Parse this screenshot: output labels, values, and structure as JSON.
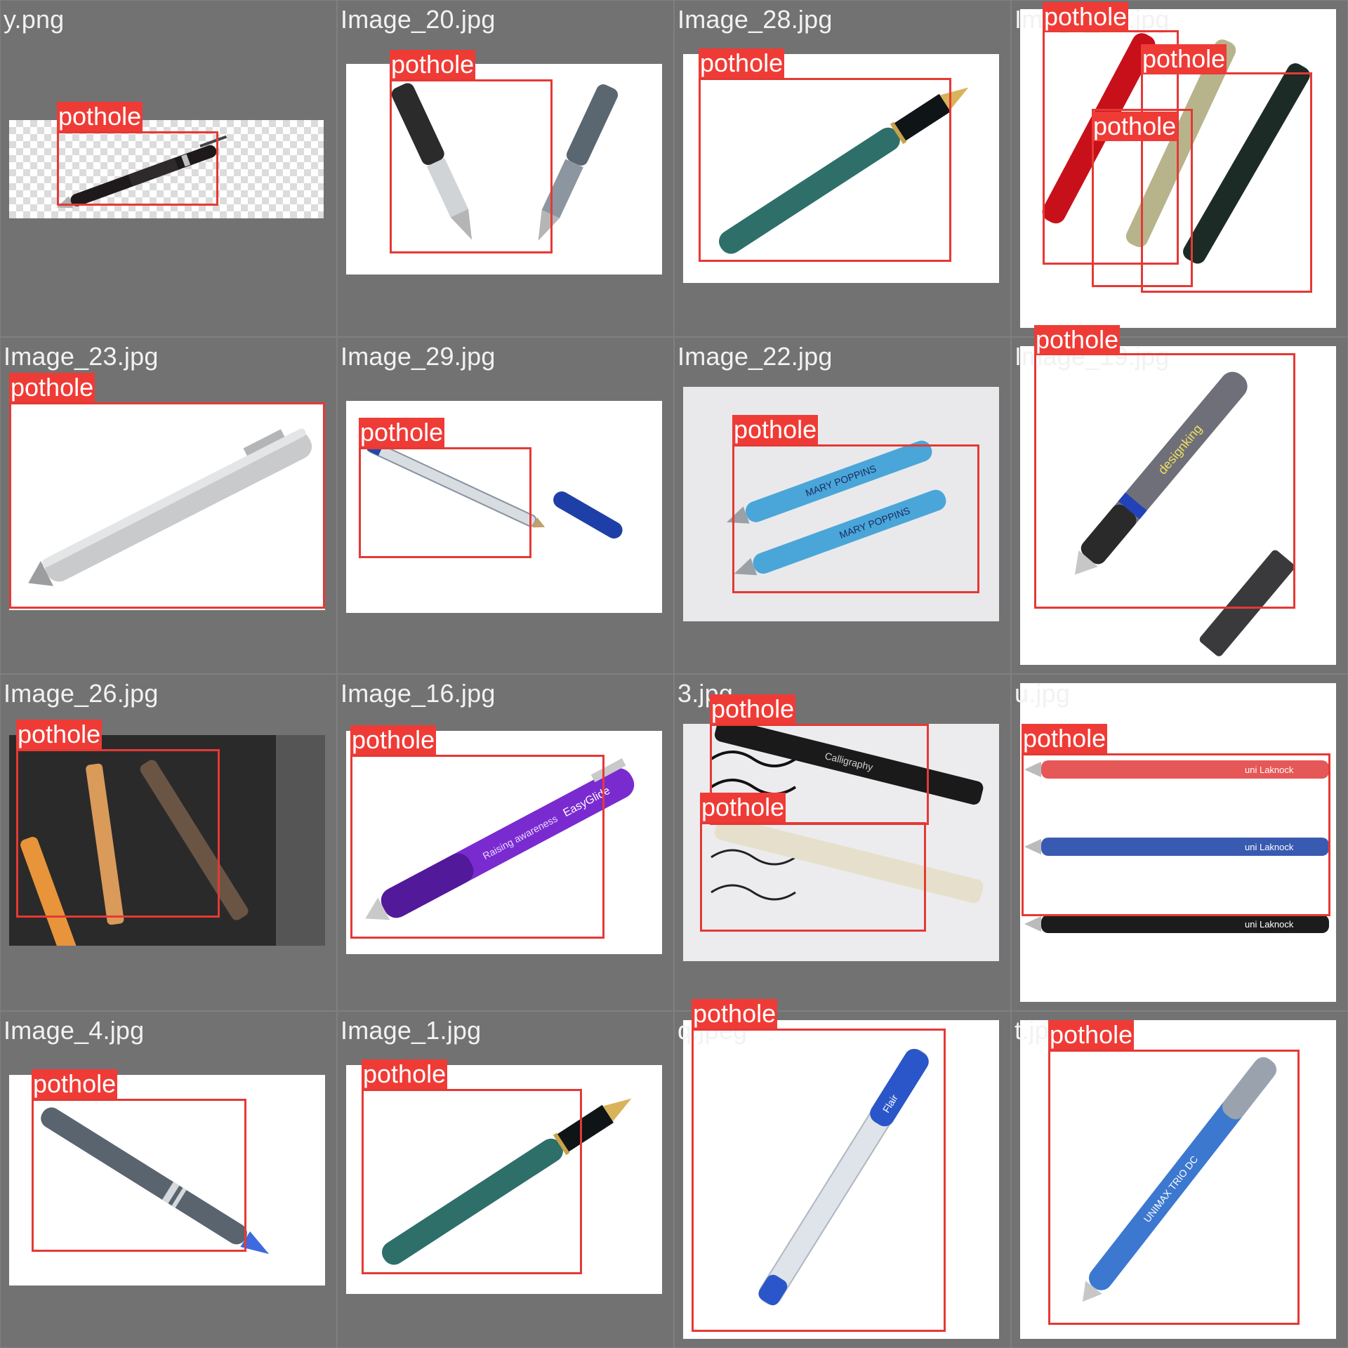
{
  "detection_label": "pothole",
  "colors": {
    "box": "#e53935",
    "label_bg": "#ef3b36",
    "tile_bg": "#727272"
  },
  "tiles": [
    {
      "filename": "y.png"
    },
    {
      "filename": "Image_20.jpg"
    },
    {
      "filename": "Image_28.jpg"
    },
    {
      "filename": "Image_21.jpg"
    },
    {
      "filename": "Image_23.jpg"
    },
    {
      "filename": "Image_29.jpg"
    },
    {
      "filename": "Image_22.jpg"
    },
    {
      "filename": "Image_19.jpg"
    },
    {
      "filename": "Image_26.jpg"
    },
    {
      "filename": "Image_16.jpg"
    },
    {
      "filename": "3.jpg"
    },
    {
      "filename": "u.jpg"
    },
    {
      "filename": "Image_4.jpg"
    },
    {
      "filename": "Image_1.jpg"
    },
    {
      "filename": "q.jpeg"
    },
    {
      "filename": "t.jpg"
    }
  ],
  "pen_text": {
    "mary_poppins": "MARY POPPINS",
    "design_king": "designking",
    "calligraphy": "Calligraphy",
    "laknock": "uni Laknock",
    "unimax": "UNIMAX TRIO DC",
    "flair": "Flair",
    "easy_glide": "EasyGlide",
    "raising": "Raising awareness"
  }
}
